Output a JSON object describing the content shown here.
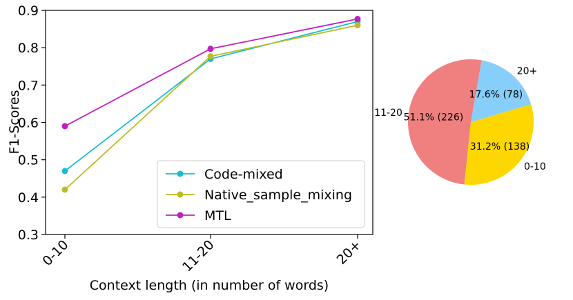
{
  "chart_data": [
    {
      "type": "line",
      "title": "",
      "xlabel": "Context length (in number of words)",
      "ylabel": "F1-Scores",
      "categories": [
        "0-10",
        "11-20",
        "20+"
      ],
      "ylim": [
        0.3,
        0.9
      ],
      "yticks": [
        "0.3",
        "0.4",
        "0.5",
        "0.6",
        "0.7",
        "0.8",
        "0.9"
      ],
      "grid": false,
      "legend_position": "lower-right",
      "series": [
        {
          "name": "Code-mixed",
          "color": "#17becf",
          "values": [
            0.47,
            0.77,
            0.87
          ]
        },
        {
          "name": "Native_sample_mixing",
          "color": "#bcbd22",
          "values": [
            0.42,
            0.777,
            0.86
          ]
        },
        {
          "name": "MTL",
          "color": "#c020c0",
          "values": [
            0.59,
            0.797,
            0.877
          ]
        }
      ]
    },
    {
      "type": "pie",
      "title": "",
      "slices": [
        {
          "label": "11-20",
          "value": 226,
          "pct_label": "51.1% (226)",
          "color": "#f08080"
        },
        {
          "label": "0-10",
          "value": 138,
          "pct_label": "31.2% (138)",
          "color": "#ffd700"
        },
        {
          "label": "20+",
          "value": 78,
          "pct_label": "17.6% (78)",
          "color": "#87cefa"
        }
      ]
    }
  ]
}
